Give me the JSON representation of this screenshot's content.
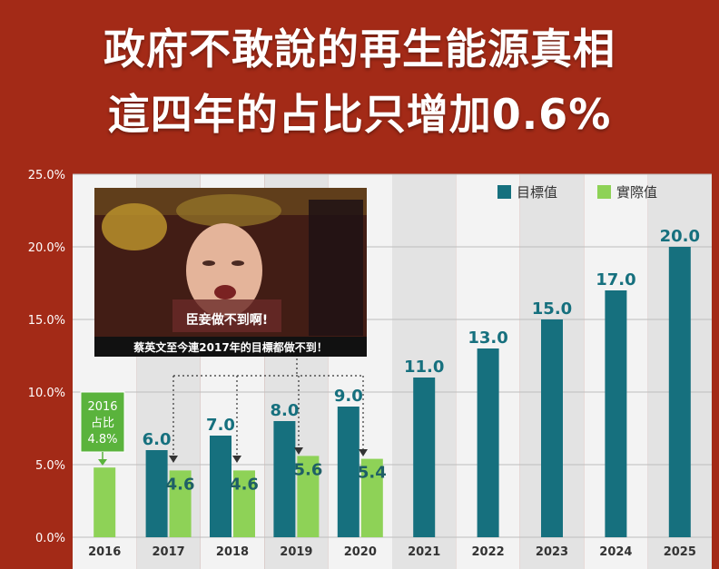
{
  "headline": {
    "line1": "政府不敢說的再生能源真相",
    "line2": "這四年的占比只增加0.6%"
  },
  "colors": {
    "background": "#a32a17",
    "target": "#16707e",
    "actual": "#8ed257",
    "column_light": "#f3f3f3",
    "column_dark": "#e3e3e3"
  },
  "meme": {
    "subtitle": "臣妾做不到啊!",
    "caption": "蔡英文至今連2017年的目標都做不到！"
  },
  "annotation": {
    "line1": "2016",
    "line2": "占比",
    "line3": "4.8%"
  },
  "chart_data": {
    "type": "bar",
    "categories": [
      "2016",
      "2017",
      "2018",
      "2019",
      "2020",
      "2021",
      "2022",
      "2023",
      "2024",
      "2025"
    ],
    "series": [
      {
        "name": "目標值",
        "color": "#16707e",
        "values": [
          null,
          6.0,
          7.0,
          8.0,
          9.0,
          11.0,
          13.0,
          15.0,
          17.0,
          20.0
        ],
        "labels": [
          "",
          "6.0",
          "7.0",
          "8.0",
          "9.0",
          "11.0",
          "13.0",
          "15.0",
          "17.0",
          "20.0"
        ]
      },
      {
        "name": "實際值",
        "color": "#8ed257",
        "values": [
          4.8,
          4.6,
          4.6,
          5.6,
          5.4,
          null,
          null,
          null,
          null,
          null
        ],
        "labels": [
          "",
          "4.6",
          "4.6",
          "5.6",
          "5.4",
          "",
          "",
          "",
          "",
          ""
        ]
      }
    ],
    "y_ticks": [
      "0.0%",
      "5.0%",
      "10.0%",
      "15.0%",
      "20.0%",
      "25.0%"
    ],
    "ylim": [
      0,
      25
    ],
    "grid": true,
    "legend": "top-right"
  }
}
